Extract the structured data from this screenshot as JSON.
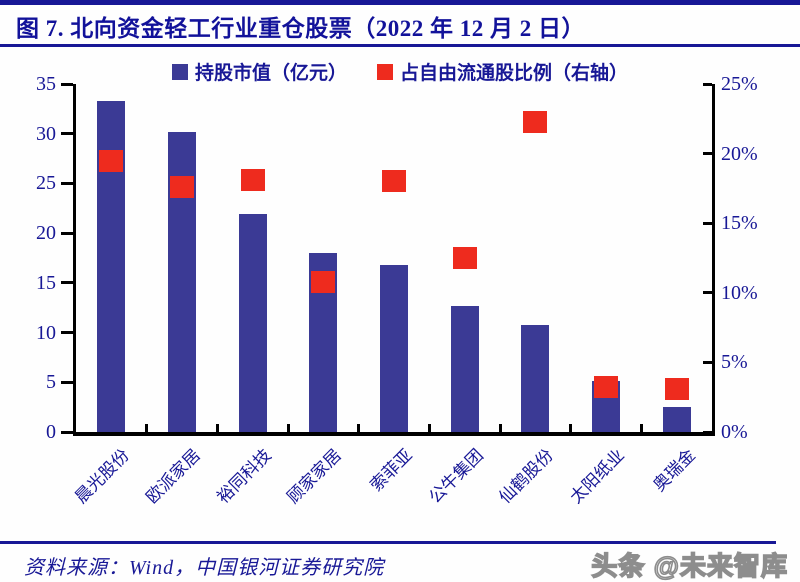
{
  "header": {
    "title": "图 7. 北向资金轻工行业重仓股票（2022 年 12 月 2 日）"
  },
  "legend": [
    {
      "label": "持股市值（亿元）",
      "marker": "square",
      "color": "#3b3a95"
    },
    {
      "label": "占自由流通股比例（右轴）",
      "marker": "square",
      "color": "#ee2b1e"
    }
  ],
  "chart_data": {
    "type": "bar",
    "title": "北向资金轻工行业重仓股票（2022 年 12 月 2 日）",
    "categories": [
      "晨光股份",
      "欧派家居",
      "裕同科技",
      "顾家家居",
      "索菲亚",
      "公牛集团",
      "仙鹤股份",
      "太阳纸业",
      "奥瑞金"
    ],
    "series": [
      {
        "name": "持股市值（亿元）",
        "chart_type": "bar",
        "axis": "left",
        "unit": "亿元",
        "color": "#3b3a95",
        "values": [
          33.3,
          30.2,
          21.9,
          18.0,
          16.8,
          12.7,
          10.8,
          5.1,
          2.5
        ]
      },
      {
        "name": "占自由流通股比例（右轴）",
        "chart_type": "scatter",
        "marker": "square",
        "axis": "right",
        "unit": "%",
        "color": "#ee2b1e",
        "values": [
          19.5,
          17.6,
          18.1,
          10.8,
          18.0,
          12.5,
          22.3,
          3.2,
          3.1
        ]
      }
    ],
    "left_axis": {
      "min": 0,
      "max": 35,
      "step": 5,
      "tick_labels": [
        "0",
        "5",
        "10",
        "15",
        "20",
        "25",
        "30",
        "35"
      ]
    },
    "right_axis": {
      "min": 0,
      "max": 25,
      "step": 5,
      "tick_labels": [
        "0%",
        "5%",
        "10%",
        "15%",
        "20%",
        "25%"
      ]
    },
    "grid": false,
    "legend_position": "top"
  },
  "footer": {
    "source": "资料来源：Wind，中国银河证券研究院",
    "watermark": "头条 @未来智库"
  },
  "colors": {
    "accent_navy": "#181896",
    "bar": "#3b3a95",
    "marker_red": "#ee2b1e",
    "axis": "#000000",
    "watermark_gray": "#8d8d8d"
  }
}
